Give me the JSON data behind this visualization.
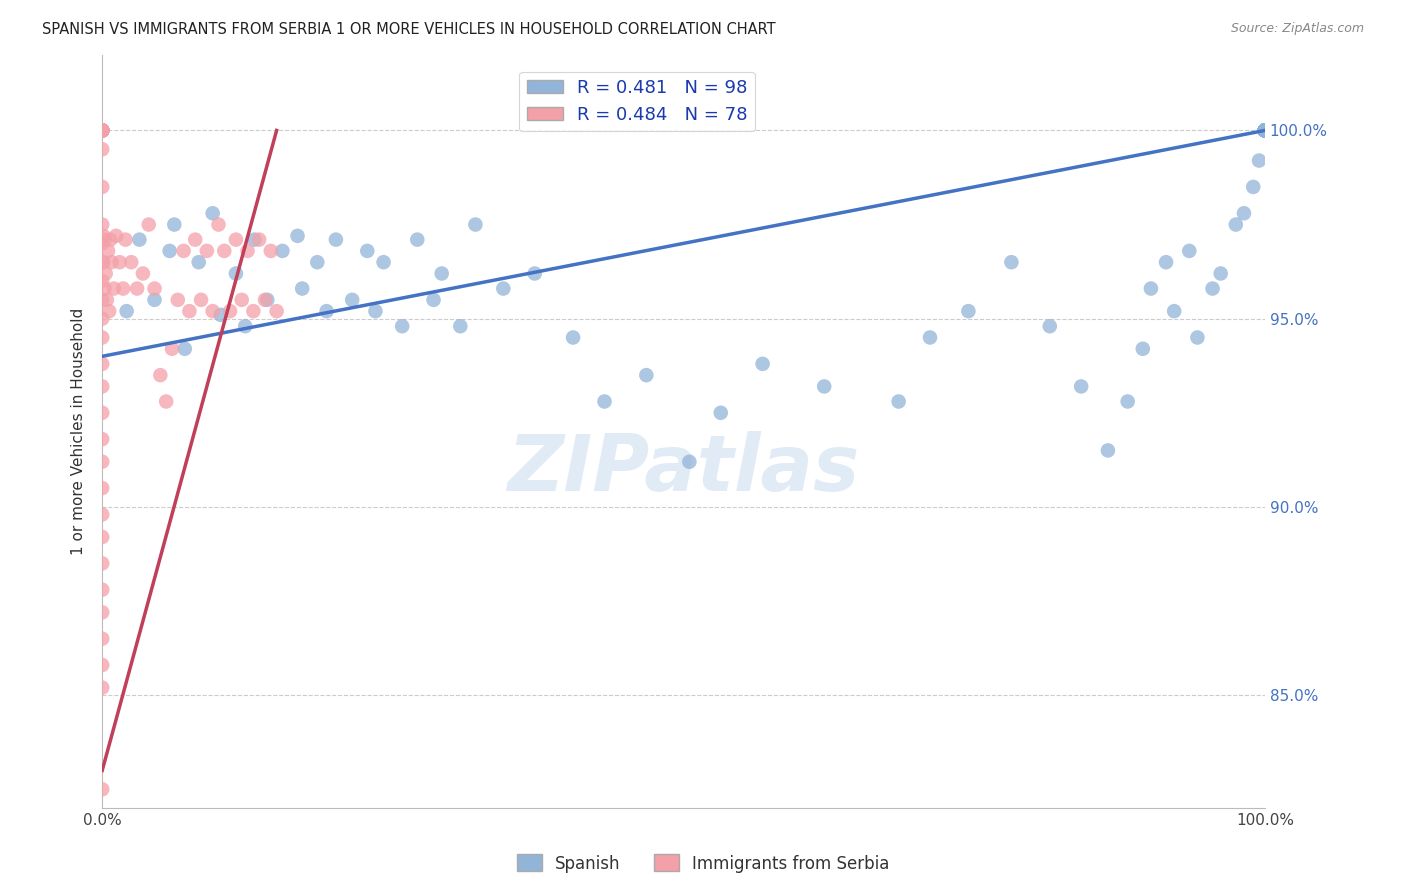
{
  "title": "SPANISH VS IMMIGRANTS FROM SERBIA 1 OR MORE VEHICLES IN HOUSEHOLD CORRELATION CHART",
  "source": "Source: ZipAtlas.com",
  "ylabel": "1 or more Vehicles in Household",
  "legend_label1": "Spanish",
  "legend_label2": "Immigrants from Serbia",
  "R_spanish": 0.481,
  "N_spanish": 98,
  "R_serbia": 0.484,
  "N_serbia": 78,
  "ytick_labels": [
    "85.0%",
    "90.0%",
    "95.0%",
    "100.0%"
  ],
  "ytick_values": [
    85.0,
    90.0,
    95.0,
    100.0
  ],
  "xlim": [
    0.0,
    100.0
  ],
  "ylim": [
    82.0,
    102.0
  ],
  "blue_color": "#92B4D8",
  "pink_color": "#F4A0A8",
  "blue_line_color": "#4472C4",
  "pink_line_color": "#C0405A",
  "background_color": "#FFFFFF",
  "title_color": "#222222",
  "source_color": "#888888",
  "right_axis_color": "#4472C4",
  "grid_color": "#CCCCCC",
  "spanish_x": [
    2.1,
    3.2,
    4.5,
    5.8,
    6.2,
    7.1,
    8.3,
    9.5,
    10.2,
    11.5,
    12.3,
    13.1,
    14.2,
    15.5,
    16.8,
    17.2,
    18.5,
    19.3,
    20.1,
    21.5,
    22.8,
    23.5,
    24.2,
    25.8,
    27.1,
    28.5,
    29.2,
    30.8,
    32.1,
    34.5,
    37.2,
    40.5,
    43.2,
    46.8,
    50.5,
    53.2,
    56.8,
    62.1,
    68.5,
    71.2,
    74.5,
    78.2,
    81.5,
    84.2,
    86.5,
    88.2,
    89.5,
    90.2,
    91.5,
    92.2,
    93.5,
    94.2,
    95.5,
    96.2,
    97.5,
    98.2,
    99.0,
    99.5,
    100.0,
    100.0,
    100.0,
    100.0,
    100.0,
    100.0,
    100.0,
    100.0,
    100.0,
    100.0,
    100.0,
    100.0,
    100.0,
    100.0,
    100.0,
    100.0,
    100.0,
    100.0,
    100.0,
    100.0,
    100.0,
    100.0,
    100.0,
    100.0,
    100.0,
    100.0,
    100.0,
    100.0,
    100.0,
    100.0,
    100.0,
    100.0,
    100.0,
    100.0,
    100.0,
    100.0,
    100.0,
    100.0,
    100.0,
    100.0
  ],
  "spanish_y": [
    95.2,
    97.1,
    95.5,
    96.8,
    97.5,
    94.2,
    96.5,
    97.8,
    95.1,
    96.2,
    94.8,
    97.1,
    95.5,
    96.8,
    97.2,
    95.8,
    96.5,
    95.2,
    97.1,
    95.5,
    96.8,
    95.2,
    96.5,
    94.8,
    97.1,
    95.5,
    96.2,
    94.8,
    97.5,
    95.8,
    96.2,
    94.5,
    92.8,
    93.5,
    91.2,
    92.5,
    93.8,
    93.2,
    92.8,
    94.5,
    95.2,
    96.5,
    94.8,
    93.2,
    91.5,
    92.8,
    94.2,
    95.8,
    96.5,
    95.2,
    96.8,
    94.5,
    95.8,
    96.2,
    97.5,
    97.8,
    98.5,
    99.2,
    100.0,
    100.0,
    100.0,
    100.0,
    100.0,
    100.0,
    100.0,
    100.0,
    100.0,
    100.0,
    100.0,
    100.0,
    100.0,
    100.0,
    100.0,
    100.0,
    100.0,
    100.0,
    100.0,
    100.0,
    100.0,
    100.0,
    100.0,
    100.0,
    100.0,
    100.0,
    100.0,
    100.0,
    100.0,
    100.0,
    100.0,
    100.0,
    100.0,
    100.0,
    100.0,
    100.0,
    100.0,
    100.0,
    100.0,
    100.0
  ],
  "serbia_x": [
    0.0,
    0.0,
    0.0,
    0.0,
    0.0,
    0.0,
    0.0,
    0.0,
    0.0,
    0.0,
    0.0,
    0.0,
    0.0,
    0.0,
    0.0,
    0.0,
    0.0,
    0.0,
    0.0,
    0.0,
    0.0,
    0.1,
    0.1,
    0.2,
    0.2,
    0.3,
    0.4,
    0.5,
    0.6,
    0.7,
    0.8,
    1.0,
    1.2,
    1.5,
    1.8,
    2.0,
    2.5,
    3.0,
    3.5,
    4.0,
    4.5,
    5.0,
    5.5,
    6.0,
    6.5,
    7.0,
    7.5,
    8.0,
    8.5,
    9.0,
    9.5,
    10.0,
    10.5,
    11.0,
    11.5,
    12.0,
    12.5,
    13.0,
    13.5,
    14.0,
    14.5,
    15.0,
    0.0,
    0.0,
    0.0,
    0.0,
    0.0,
    0.0,
    0.0,
    0.0,
    0.0,
    0.0,
    0.0,
    0.0,
    0.0,
    0.0,
    0.0,
    0.0
  ],
  "serbia_y": [
    100.0,
    100.0,
    100.0,
    100.0,
    100.0,
    100.0,
    100.0,
    100.0,
    100.0,
    100.0,
    100.0,
    100.0,
    100.0,
    99.5,
    98.5,
    97.5,
    97.0,
    96.5,
    96.0,
    95.5,
    95.0,
    97.2,
    96.5,
    95.8,
    97.1,
    96.2,
    95.5,
    96.8,
    95.2,
    97.1,
    96.5,
    95.8,
    97.2,
    96.5,
    95.8,
    97.1,
    96.5,
    95.8,
    96.2,
    97.5,
    95.8,
    93.5,
    92.8,
    94.2,
    95.5,
    96.8,
    95.2,
    97.1,
    95.5,
    96.8,
    95.2,
    97.5,
    96.8,
    95.2,
    97.1,
    95.5,
    96.8,
    95.2,
    97.1,
    95.5,
    96.8,
    95.2,
    94.5,
    93.8,
    93.2,
    92.5,
    91.8,
    91.2,
    90.5,
    89.8,
    89.2,
    88.5,
    87.8,
    87.2,
    86.5,
    85.8,
    85.2,
    82.5
  ]
}
